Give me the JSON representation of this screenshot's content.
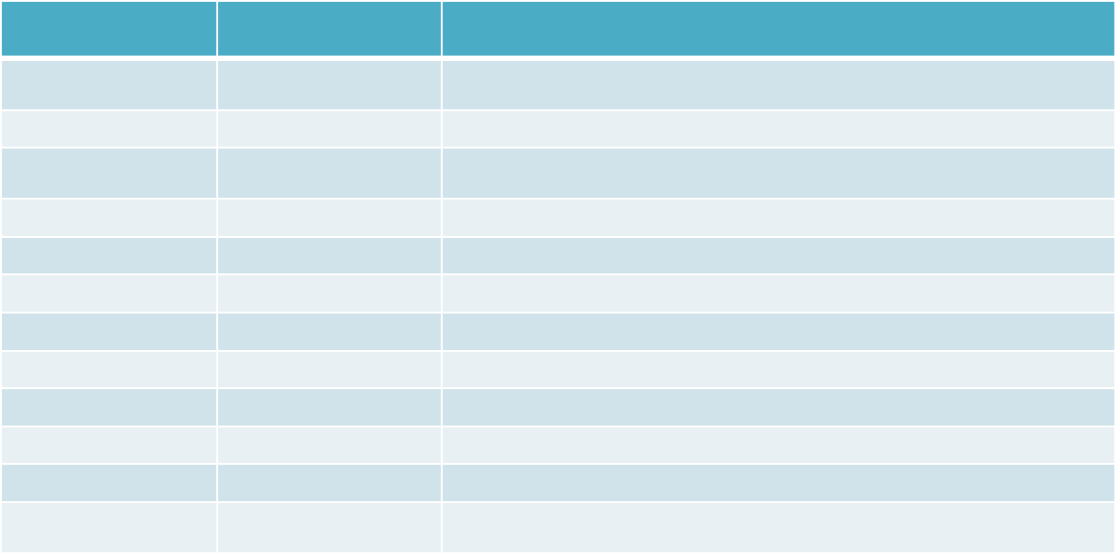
{
  "colors": {
    "header": "#4BACC6",
    "row_odd": "#D0E3EA",
    "row_even": "#E9F0F3"
  },
  "table": {
    "headers": [
      "",
      "",
      ""
    ],
    "rows": [
      [
        "",
        "",
        ""
      ],
      [
        "",
        "",
        ""
      ],
      [
        "",
        "",
        ""
      ],
      [
        "",
        "",
        ""
      ],
      [
        "",
        "",
        ""
      ],
      [
        "",
        "",
        ""
      ],
      [
        "",
        "",
        ""
      ],
      [
        "",
        "",
        ""
      ],
      [
        "",
        "",
        ""
      ],
      [
        "",
        "",
        ""
      ],
      [
        "",
        "",
        ""
      ],
      [
        "",
        "",
        ""
      ]
    ]
  }
}
